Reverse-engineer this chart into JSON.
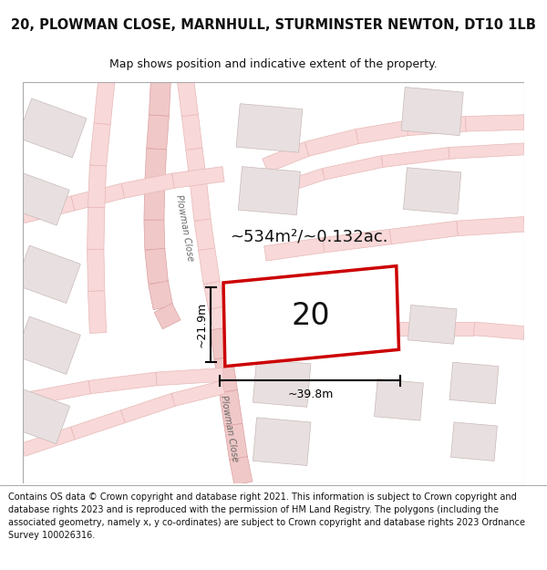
{
  "title_line1": "20, PLOWMAN CLOSE, MARNHULL, STURMINSTER NEWTON, DT10 1LB",
  "title_line2": "Map shows position and indicative extent of the property.",
  "area_label": "~534m²/~0.132ac.",
  "plot_number": "20",
  "dim_width": "~39.8m",
  "dim_height": "~21.9m",
  "road_label_upper": "Plowman Close",
  "road_label_lower": "Plowman Close",
  "footer_text": "Contains OS data © Crown copyright and database right 2021. This information is subject to Crown copyright and database rights 2023 and is reproduced with the permission of HM Land Registry. The polygons (including the associated geometry, namely x, y co-ordinates) are subject to Crown copyright and database rights 2023 Ordnance Survey 100026316.",
  "map_bg": "#ffffff",
  "road_fill": "#f8d8d8",
  "road_edge": "#e8b8b8",
  "road_fill2": "#f0c8c8",
  "road_edge2": "#dda0a0",
  "building_fill": "#e8e0e0",
  "building_edge": "#c8b8b8",
  "plot_fill": "#ffffff",
  "plot_edge": "#cc0000",
  "plot_lw": 2.5,
  "dim_color": "#000000",
  "text_color": "#111111",
  "title_fs": 10.5,
  "sub_fs": 9,
  "footer_fs": 7.0,
  "area_fs": 13,
  "plot_num_fs": 24,
  "dim_fs": 9,
  "road_label_fs": 7
}
